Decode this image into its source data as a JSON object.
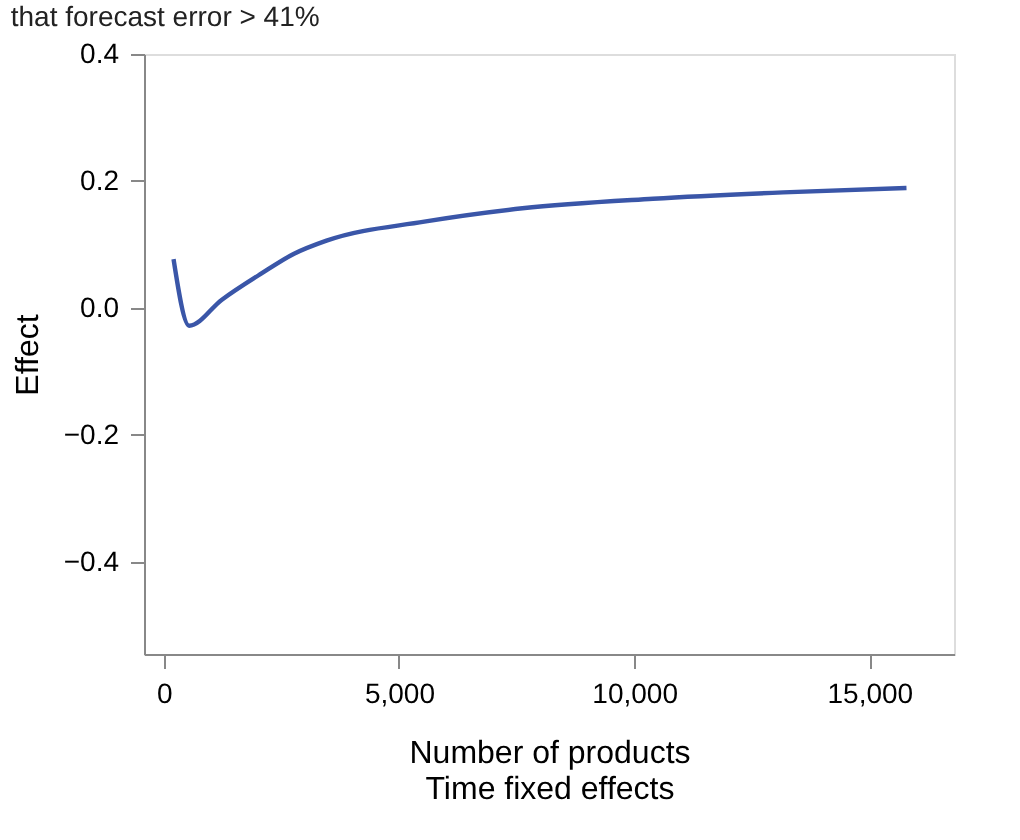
{
  "chart_data": {
    "type": "line",
    "title": "that forecast error > 41%",
    "xlabel": "Number of products\nTime fixed effects",
    "ylabel": "Effect",
    "x": [
      208,
      540,
      1236,
      2070,
      2760,
      3460,
      5540,
      7625,
      10400,
      13170,
      15790
    ],
    "series": [
      {
        "color": "#3a56a8",
        "values": [
          0.077,
          -0.028,
          0.013,
          0.054,
          0.085,
          0.106,
          0.136,
          0.157,
          0.172,
          0.182,
          0.189
        ]
      }
    ],
    "xlim": [
      -420,
      16800
    ],
    "xticks": [
      0,
      {
        "value": 5000,
        "label": "5,000"
      },
      {
        "value": 10000,
        "label": "10,000"
      },
      {
        "value": 15000,
        "label": "15,000"
      }
    ],
    "ylim": [
      -0.545,
      0.4
    ],
    "yticks": [
      {
        "value": -0.4,
        "label": "−0.4"
      },
      {
        "value": -0.2,
        "label": "−0.2"
      },
      {
        "value": 0,
        "label": "0.0"
      },
      {
        "value": 0.2,
        "label": "0.2"
      },
      {
        "value": 0.4,
        "label": "0.4"
      }
    ],
    "grid": false,
    "marker": "none",
    "line_style": "solid"
  }
}
